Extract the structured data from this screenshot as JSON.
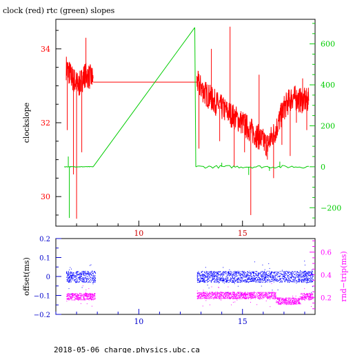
{
  "title": "clock (red) rtc (green) slopes",
  "footer": "2018-05-06 charge.physics.ubc.ca",
  "colors": {
    "clock": "#ff0000",
    "rtc": "#00cc00",
    "offset": "#0000ff",
    "rndtrip": "#ff00ff",
    "axis": "#000000",
    "top_x_ticks": "#cc0000",
    "bottom_ticks": "#0000cc"
  },
  "chart_data": [
    {
      "type": "line",
      "title": "clock (red) rtc (green) slopes",
      "xlim": [
        6,
        18.5
      ],
      "x_ticks": [
        10,
        15
      ],
      "x_tick_labels": [
        "10",
        "15"
      ],
      "left_axis": {
        "label": "clockslope",
        "ylim": [
          29.2,
          34.8
        ],
        "ticks": [
          30,
          32,
          34
        ],
        "tick_labels": [
          "30",
          "32",
          "34"
        ]
      },
      "right_axis": {
        "label": "",
        "ylim": [
          -290,
          720
        ],
        "ticks": [
          -200,
          0,
          200,
          400,
          600
        ],
        "tick_labels": [
          "−200",
          "0",
          "200",
          "400",
          "600"
        ]
      },
      "series": [
        {
          "name": "clock",
          "axis": "left",
          "segments": [
            {
              "x": [
                6.5,
                6.8,
                7.1,
                7.4,
                7.8
              ],
              "y": [
                33.5,
                33.2,
                33.0,
                33.3,
                33.2
              ]
            },
            {
              "x": [
                7.8,
                12.8
              ],
              "y": [
                33.1,
                33.1
              ]
            },
            {
              "x": [
                12.8,
                13.2,
                13.6,
                14.0,
                14.5,
                15.0,
                15.4,
                15.8,
                16.2,
                16.6,
                17.0,
                17.4,
                17.8,
                18.2
              ],
              "y": [
                33.1,
                32.8,
                32.6,
                32.4,
                32.2,
                32.0,
                31.8,
                31.6,
                31.4,
                31.8,
                32.4,
                32.7,
                32.6,
                32.6
              ]
            }
          ],
          "spikes": [
            {
              "x": 6.55,
              "y": 31.8
            },
            {
              "x": 6.85,
              "y": 30.6
            },
            {
              "x": 7.0,
              "y": 29.4
            },
            {
              "x": 7.25,
              "y": 31.2
            },
            {
              "x": 7.45,
              "y": 34.3
            },
            {
              "x": 12.9,
              "y": 31.3
            },
            {
              "x": 13.5,
              "y": 34.0
            },
            {
              "x": 13.9,
              "y": 31.5
            },
            {
              "x": 14.4,
              "y": 34.6
            },
            {
              "x": 14.6,
              "y": 30.8
            },
            {
              "x": 15.1,
              "y": 31.2
            },
            {
              "x": 15.4,
              "y": 29.5
            },
            {
              "x": 15.8,
              "y": 33.3
            },
            {
              "x": 16.2,
              "y": 31.0
            },
            {
              "x": 16.5,
              "y": 30.5
            },
            {
              "x": 16.9,
              "y": 31.4
            },
            {
              "x": 17.3,
              "y": 31.1
            },
            {
              "x": 17.6,
              "y": 32.0
            },
            {
              "x": 17.9,
              "y": 33.2
            },
            {
              "x": 18.1,
              "y": 31.8
            }
          ]
        },
        {
          "name": "rtc",
          "axis": "right",
          "segments": [
            {
              "x": [
                6.4,
                7.8
              ],
              "y": [
                0,
                0
              ]
            },
            {
              "x": [
                7.8,
                12.7
              ],
              "y": [
                0,
                680
              ]
            },
            {
              "x": [
                12.7,
                12.75
              ],
              "y": [
                680,
                0
              ]
            },
            {
              "x": [
                12.75,
                18.2
              ],
              "y": [
                0,
                0
              ]
            }
          ],
          "spikes": [
            {
              "x": 6.6,
              "y": 50
            },
            {
              "x": 6.65,
              "y": -250
            },
            {
              "x": 14.0,
              "y": 20
            },
            {
              "x": 15.3,
              "y": -40
            },
            {
              "x": 16.3,
              "y": -20
            },
            {
              "x": 16.8,
              "y": 25
            }
          ]
        }
      ]
    },
    {
      "type": "scatter",
      "xlim": [
        6,
        18.5
      ],
      "x_ticks": [
        10,
        15
      ],
      "x_tick_labels": [
        "10",
        "15"
      ],
      "left_axis": {
        "label": "offset(ms)",
        "ylim": [
          -0.2,
          0.2
        ],
        "ticks": [
          -0.2,
          -0.1,
          0,
          0.1,
          0.2
        ],
        "tick_labels": [
          "−0.2",
          "−0.1",
          "0",
          "0.1",
          "0.2"
        ]
      },
      "right_axis": {
        "label": "rnd−trip(ms)",
        "ylim": [
          0.05,
          0.72
        ],
        "ticks": [
          0.2,
          0.4,
          0.6
        ],
        "tick_labels": [
          "0.2",
          "0.4",
          "0.6"
        ]
      },
      "series": [
        {
          "name": "offset",
          "axis": "left",
          "segments": [
            {
              "x_range": [
                6.5,
                7.9
              ],
              "center": 0.0,
              "spread": 0.03
            },
            {
              "x_range": [
                12.8,
                18.4
              ],
              "center": 0.0,
              "spread": 0.03
            }
          ]
        },
        {
          "name": "rnd-trip",
          "axis": "right",
          "segments": [
            {
              "x_range": [
                6.5,
                7.9
              ],
              "center": 0.21,
              "spread": 0.03
            },
            {
              "x_range": [
                12.8,
                16.6
              ],
              "center": 0.22,
              "spread": 0.03
            },
            {
              "x_range": [
                16.6,
                17.8
              ],
              "center": 0.17,
              "spread": 0.03
            },
            {
              "x_range": [
                17.8,
                18.4
              ],
              "center": 0.21,
              "spread": 0.03
            }
          ]
        }
      ]
    }
  ]
}
